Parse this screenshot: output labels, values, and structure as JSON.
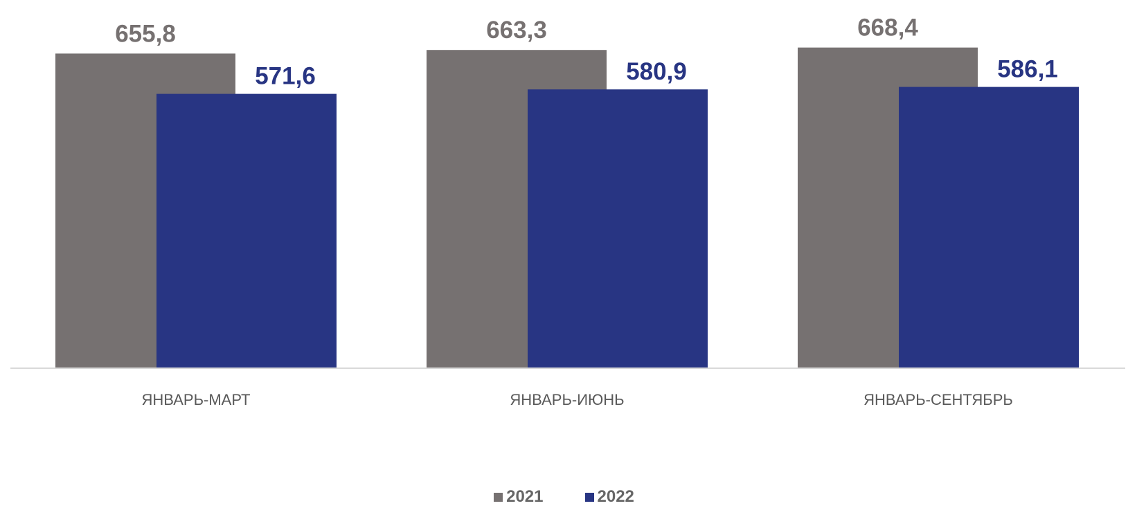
{
  "chart_data": {
    "type": "bar",
    "categories": [
      "ЯНВАРЬ-МАРТ",
      "ЯНВАРЬ-ИЮНЬ",
      "ЯНВАРЬ-СЕНТЯБРЬ"
    ],
    "series": [
      {
        "name": "2021",
        "values": [
          655.8,
          663.3,
          668.4
        ],
        "labels": [
          "655,8",
          "663,3",
          "668,4"
        ],
        "color": "#767171"
      },
      {
        "name": "2022",
        "values": [
          571.6,
          580.9,
          586.1
        ],
        "labels": [
          "571,6",
          "580,9",
          "586,1"
        ],
        "color": "#283583"
      }
    ],
    "title": "",
    "xlabel": "",
    "ylabel": "",
    "ylim": [
      0,
      700
    ],
    "grid": false,
    "legend": "bottom-center",
    "overlapping_bars": true
  }
}
